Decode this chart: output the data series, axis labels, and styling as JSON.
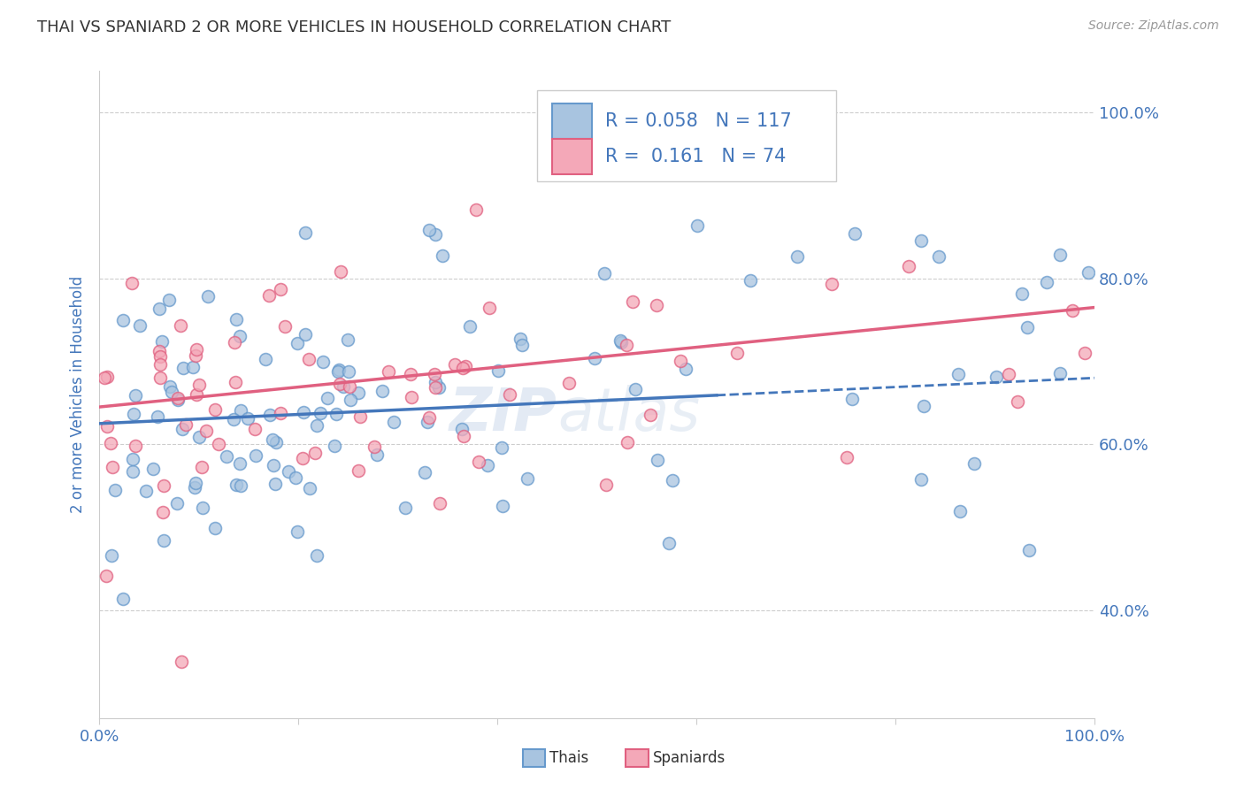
{
  "title": "THAI VS SPANIARD 2 OR MORE VEHICLES IN HOUSEHOLD CORRELATION CHART",
  "source": "Source: ZipAtlas.com",
  "ylabel": "2 or more Vehicles in Household",
  "watermark": "ZIPatlas",
  "legend_thai_R": "0.058",
  "legend_thai_N": "117",
  "legend_span_R": "0.161",
  "legend_span_N": "74",
  "thai_color": "#a8c4e0",
  "spaniard_color": "#f4a8b8",
  "thai_edge_color": "#6699cc",
  "spaniard_edge_color": "#e06080",
  "trend_thai_color": "#4477bb",
  "trend_spaniard_color": "#e06080",
  "background": "#ffffff",
  "grid_color": "#c8c8c8",
  "title_color": "#333333",
  "axis_label_color": "#4477bb",
  "ytick_color": "#4477bb",
  "xmin": 0.0,
  "xmax": 1.0,
  "ymin": 0.27,
  "ymax": 1.05,
  "yticks": [
    0.4,
    0.6,
    0.8,
    1.0
  ],
  "ytick_labels": [
    "40.0%",
    "60.0%",
    "80.0%",
    "100.0%"
  ],
  "thai_trend_x0": 0.0,
  "thai_trend_y0": 0.625,
  "thai_trend_slope": 0.055,
  "thai_trend_solid_end": 0.62,
  "spaniard_trend_x0": 0.0,
  "spaniard_trend_y0": 0.645,
  "spaniard_trend_slope": 0.12,
  "marker_size": 100,
  "marker_alpha": 0.75,
  "seed_thai": 42,
  "seed_span": 7,
  "n_thai": 117,
  "n_span": 74
}
